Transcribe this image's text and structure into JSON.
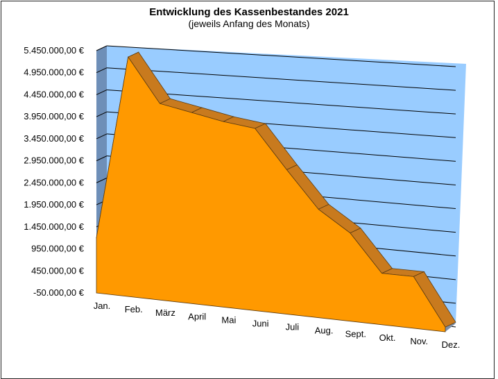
{
  "chart_data": {
    "type": "area",
    "title": "Entwicklung des Kassenbestandes 2021",
    "subtitle": "(jeweils  Anfang des Monats)",
    "xlabel": "",
    "ylabel": "",
    "categories": [
      "Jan.",
      "Feb.",
      "März",
      "April",
      "Mai",
      "Juni",
      "Juli",
      "Aug.",
      "Sept.",
      "Okt.",
      "Nov.",
      "Dez."
    ],
    "values": [
      1200000,
      5350000,
      4350000,
      4200000,
      4050000,
      3950000,
      3100000,
      2300000,
      1850000,
      1050000,
      1050000,
      50000
    ],
    "y_ticks": [
      "5.450.000,00 €",
      "4.950.000,00 €",
      "4.450.000,00 €",
      "3.950.000,00 €",
      "3.450.000,00 €",
      "2.950.000,00 €",
      "2.450.000,00 €",
      "1.950.000,00 €",
      "1.450.000,00 €",
      "950.000,00 €",
      "450.000,00 €",
      "-50.000,00 €"
    ],
    "ylim": [
      -50000,
      5450000
    ],
    "grid": true,
    "legend": "none",
    "colors": {
      "area_fill": "#FF9900",
      "area_top": "#C87A1E",
      "wall": "#99CCFF",
      "side_wall": "#6E8FB8"
    }
  }
}
